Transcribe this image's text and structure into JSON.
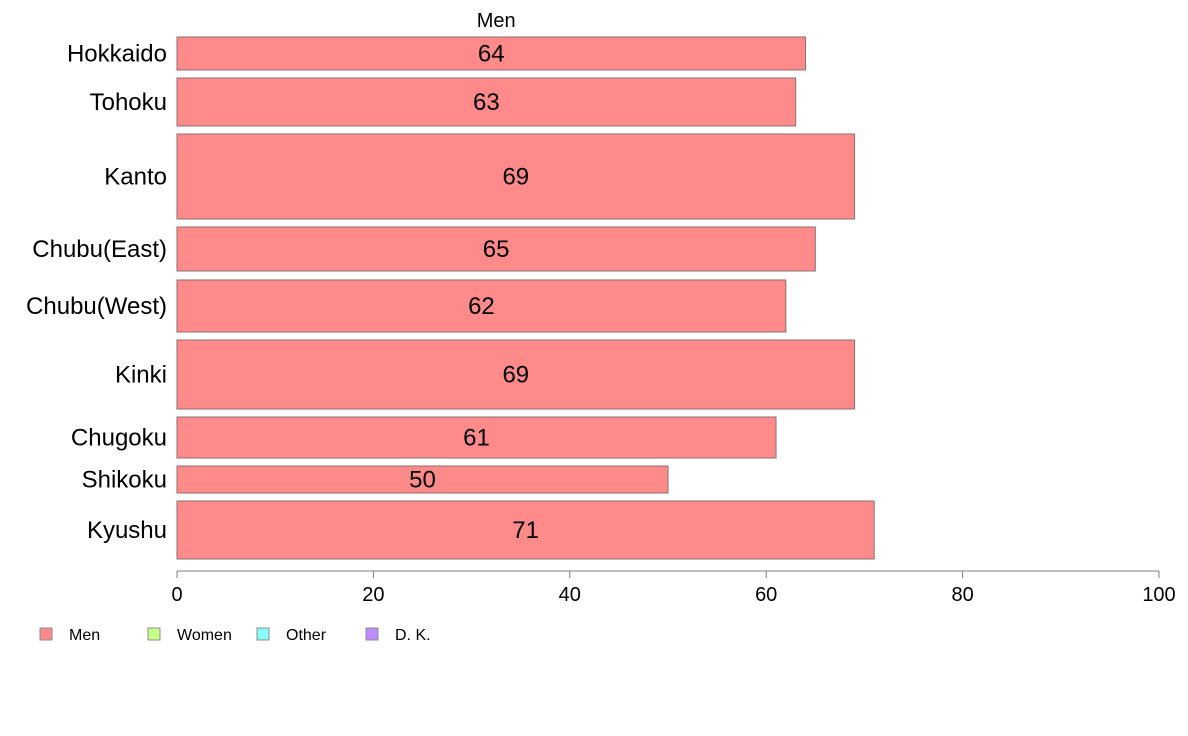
{
  "chart_data": {
    "type": "bar",
    "orientation": "horizontal",
    "title": "Men",
    "categories": [
      "Hokkaido",
      "Tohoku",
      "Kanto",
      "Chubu(East)",
      "Chubu(West)",
      "Kinki",
      "Chugoku",
      "Shikoku",
      "Kyushu"
    ],
    "series": [
      {
        "name": "Men",
        "values": [
          64,
          63,
          69,
          65,
          62,
          69,
          61,
          50,
          71
        ],
        "color": "#ff8a8a"
      }
    ],
    "xlim": [
      0,
      100
    ],
    "x_ticks": [
      0,
      20,
      40,
      60,
      80,
      100
    ],
    "grid": false,
    "legend": {
      "position": "bottom-left",
      "entries": [
        {
          "name": "Men",
          "color": "#ff8a8a"
        },
        {
          "name": "Women",
          "color": "#c8ff8a"
        },
        {
          "name": "Other",
          "color": "#8affff"
        },
        {
          "name": "D. K.",
          "color": "#c08aff"
        }
      ]
    }
  }
}
